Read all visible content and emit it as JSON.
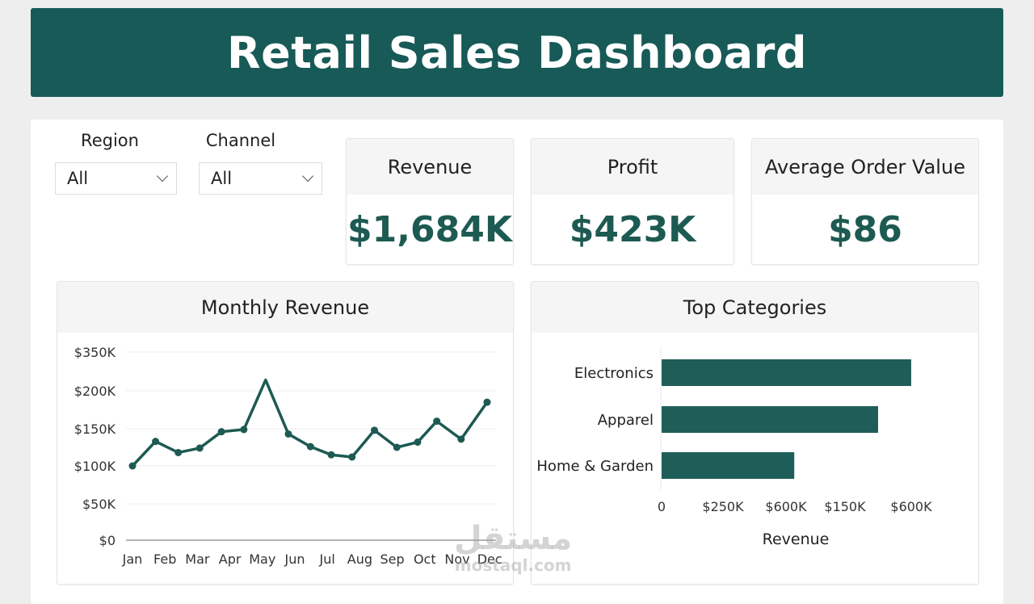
{
  "header": {
    "title": "Retail Sales Dashboard"
  },
  "filters": [
    {
      "label": "Region",
      "value": "All"
    },
    {
      "label": "Channel",
      "value": "All"
    }
  ],
  "kpis": [
    {
      "label": "Revenue",
      "value": "$1,684K"
    },
    {
      "label": "Profit",
      "value": "$423K"
    },
    {
      "label": "Average Order Value",
      "value": "$86"
    }
  ],
  "colors": {
    "brand": "#175a57",
    "series": "#1d5a52",
    "bar": "#1f5e58"
  },
  "watermark": {
    "arabic": "مستقل",
    "latin": "mostaql.com"
  },
  "chart_data": [
    {
      "type": "line",
      "title": "Monthly Revenue",
      "xlabel": "",
      "ylabel": "",
      "x_tick_labels": [
        "Jan",
        "Feb",
        "Mar",
        "Apr",
        "May",
        "Jun",
        "Jul",
        "Aug",
        "Sep",
        "Oct",
        "Nov",
        "Dec"
      ],
      "y_tick_labels": [
        "$0",
        "$50K",
        "$100K",
        "$150K",
        "$200K",
        "$350K"
      ],
      "y_tick_values": [
        0,
        50,
        100,
        150,
        200,
        350
      ],
      "y_unit": "K$",
      "grid": true,
      "series": [
        {
          "name": "Revenue",
          "x_month_index": [
            0,
            0.71,
            1.41,
            2.07,
            2.74,
            3.43,
            4.1,
            4.8,
            5.48,
            6.12,
            6.76,
            7.45,
            8.14,
            8.78,
            9.37,
            10.12,
            10.92
          ],
          "values": [
            100,
            133,
            118,
            124,
            146,
            149,
            242,
            143,
            126,
            115,
            112,
            148,
            125,
            132,
            160,
            136,
            185
          ]
        }
      ]
    },
    {
      "type": "bar",
      "orientation": "horizontal",
      "title": "Top Categories",
      "xlabel": "Revenue",
      "categories": [
        "Electronics",
        "Apparel",
        "Home & Garden"
      ],
      "x_tick_labels": [
        "0",
        "$250K",
        "$600K",
        "$150K",
        "$600K"
      ],
      "values_in_tick_index_units": [
        4.0,
        3.5,
        2.14
      ]
    }
  ]
}
